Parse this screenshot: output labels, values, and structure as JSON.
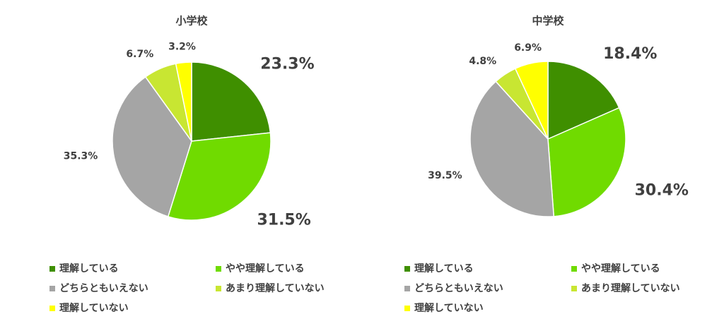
{
  "chart_data": [
    {
      "type": "pie",
      "title": "小学校",
      "categories": [
        "理解している",
        "やや理解している",
        "どちらともいえない",
        "あまり理解していない",
        "理解していない"
      ],
      "values": [
        23.3,
        31.5,
        35.3,
        6.7,
        3.2
      ],
      "value_labels": [
        "23.3%",
        "31.5%",
        "35.3%",
        "6.7%",
        "3.2%"
      ],
      "colors": [
        "#3f8f00",
        "#70db00",
        "#a5a5a5",
        "#c8e632",
        "#ffff00"
      ]
    },
    {
      "type": "pie",
      "title": "中学校",
      "categories": [
        "理解している",
        "やや理解している",
        "どちらともいえない",
        "あまり理解していない",
        "理解していない"
      ],
      "values": [
        18.4,
        30.4,
        39.5,
        4.8,
        6.9
      ],
      "value_labels": [
        "18.4%",
        "30.4%",
        "39.5%",
        "4.8%",
        "6.9%"
      ],
      "colors": [
        "#3f8f00",
        "#70db00",
        "#a5a5a5",
        "#c8e632",
        "#ffff00"
      ]
    }
  ]
}
